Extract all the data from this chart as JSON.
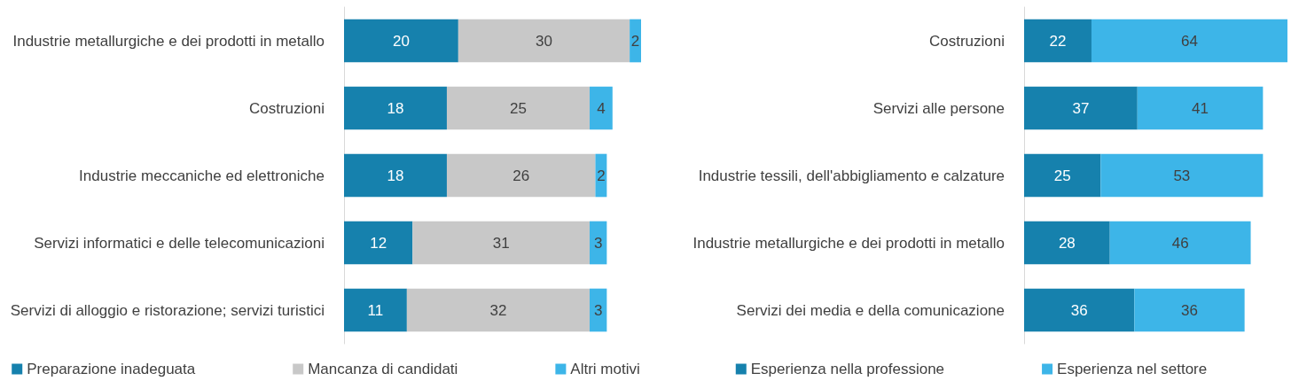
{
  "chart_data": [
    {
      "type": "bar",
      "orientation": "horizontal",
      "stacked": true,
      "data_labels": true,
      "legend": "bottom",
      "categories": [
        "Industrie metallurgiche e dei prodotti in metallo",
        "Costruzioni",
        "Industrie meccaniche ed elettroniche",
        "Servizi informatici e delle telecomunicazioni",
        "Servizi di alloggio e ristorazione; servizi turistici"
      ],
      "series": [
        {
          "name": "Preparazione inadeguata",
          "color": "#1681ad",
          "values": [
            20,
            18,
            18,
            12,
            11
          ]
        },
        {
          "name": "Mancanza di candidati",
          "color": "#c8c8c8",
          "values": [
            30,
            25,
            26,
            31,
            32
          ]
        },
        {
          "name": "Altri motivi",
          "color": "#3db5e8",
          "values": [
            2,
            4,
            2,
            3,
            3
          ]
        }
      ]
    },
    {
      "type": "bar",
      "orientation": "horizontal",
      "stacked": true,
      "data_labels": true,
      "legend": "bottom",
      "categories": [
        "Costruzioni",
        "Servizi alle persone",
        "Industrie tessili, dell'abbigliamento e calzature",
        "Industrie metallurgiche e dei prodotti in metallo",
        "Servizi dei media e della comunicazione"
      ],
      "series": [
        {
          "name": "Esperienza nella professione",
          "color": "#1681ad",
          "values": [
            22,
            37,
            25,
            28,
            36
          ]
        },
        {
          "name": "Esperienza nel settore",
          "color": "#3db5e8",
          "values": [
            64,
            41,
            53,
            46,
            36
          ]
        }
      ]
    }
  ]
}
